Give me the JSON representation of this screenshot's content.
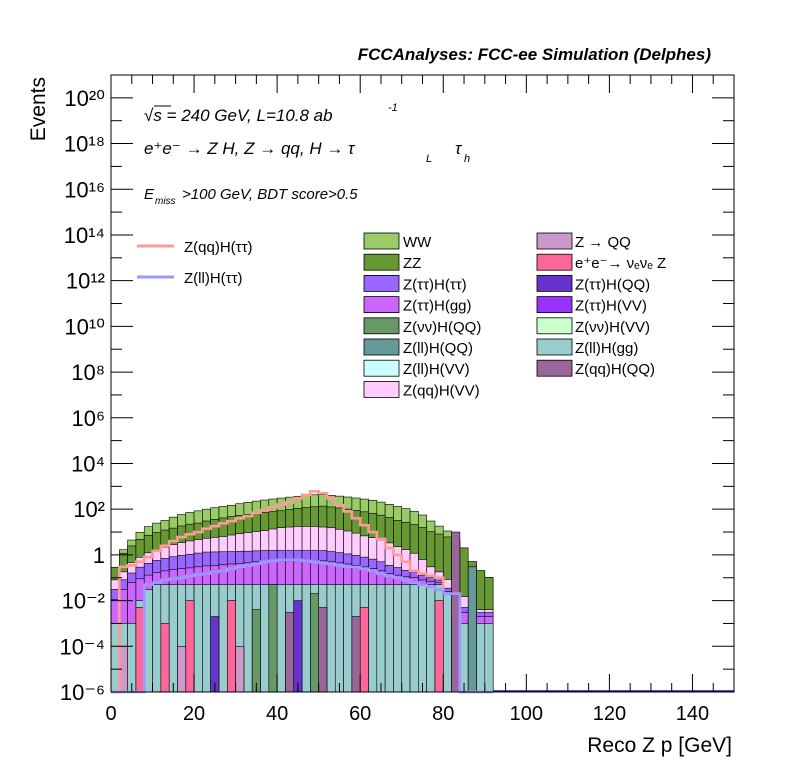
{
  "header": {
    "title": "FCCAnalyses: FCC-ee Simulation (Delphes)"
  },
  "annotations": {
    "sqrt_s": "√s = 240 GeV, L=10.8 ab",
    "lumi_exp": "-1",
    "process": "e⁺e⁻ → Z H, Z → qq, H → τ",
    "tau_L": "L",
    "tau_h": "h",
    "selection_sub": "miss",
    "selection": ">100 GeV, BDT score>0.5"
  },
  "chart_data": {
    "type": "histogram",
    "title": "FCCAnalyses: FCC-ee Simulation (Delphes)",
    "xlabel": "Reco Z p [GeV]",
    "ylabel": "Events",
    "xlim": [
      0,
      150
    ],
    "ylim": [
      1e-06,
      1e+21
    ],
    "y_scale": "log",
    "x_ticks": [
      0,
      20,
      40,
      60,
      80,
      100,
      120,
      140
    ],
    "y_ticks": [
      {
        "value": 1e-06,
        "label": "10⁻⁶"
      },
      {
        "value": 0.0001,
        "label": "10⁻⁴"
      },
      {
        "value": 0.01,
        "label": "10⁻²"
      },
      {
        "value": 1,
        "label": "1"
      },
      {
        "value": 100.0,
        "label": "10²"
      },
      {
        "value": 10000.0,
        "label": "10⁴"
      },
      {
        "value": 1000000.0,
        "label": "10⁶"
      },
      {
        "value": 100000000.0,
        "label": "10⁸"
      },
      {
        "value": 10000000000.0,
        "label": "10¹⁰"
      },
      {
        "value": 1000000000000.0,
        "label": "10¹²"
      },
      {
        "value": 100000000000000.0,
        "label": "10¹⁴"
      },
      {
        "value": 1e+16,
        "label": "10¹⁶"
      },
      {
        "value": 1e+18,
        "label": "10¹⁸"
      },
      {
        "value": 1e+20,
        "label": "10²⁰"
      }
    ],
    "bin_edges": [
      0,
      2,
      4,
      6,
      8,
      10,
      12,
      14,
      16,
      18,
      20,
      22,
      24,
      26,
      28,
      30,
      32,
      34,
      36,
      38,
      40,
      42,
      44,
      46,
      48,
      50,
      52,
      54,
      56,
      58,
      60,
      62,
      64,
      66,
      68,
      70,
      72,
      74,
      76,
      78,
      80,
      82,
      84,
      86,
      88,
      90,
      92
    ],
    "stack": [
      {
        "name": "Z(ll)H(gg)",
        "color": "#99cccc",
        "values": [
          0.001,
          0.001,
          0.001,
          0.01,
          0.03,
          0.05,
          0.05,
          0.05,
          0.05,
          0.05,
          0.05,
          0.05,
          0.05,
          0.05,
          0.05,
          0.05,
          0.05,
          0.05,
          0.05,
          0.05,
          0.05,
          0.05,
          0.05,
          0.05,
          0.05,
          0.05,
          0.05,
          0.05,
          0.05,
          0.05,
          0.05,
          0.05,
          0.05,
          0.05,
          0.05,
          0.05,
          0.05,
          0.05,
          0.05,
          0.05,
          0.02,
          0.002,
          0.001,
          0.001,
          0.001,
          0.001
        ]
      },
      {
        "name": "Z(ττ)H(gg)",
        "color": "#cc66ff",
        "values": [
          0.01,
          0.03,
          0.06,
          0.08,
          0.1,
          0.12,
          0.15,
          0.18,
          0.2,
          0.22,
          0.25,
          0.28,
          0.3,
          0.32,
          0.35,
          0.38,
          0.4,
          0.45,
          0.5,
          0.5,
          0.5,
          0.5,
          0.5,
          0.5,
          0.5,
          0.5,
          0.45,
          0.4,
          0.35,
          0.3,
          0.25,
          0.2,
          0.15,
          0.1,
          0.08,
          0.06,
          0.05,
          0.03,
          0.02,
          0.01,
          0.005,
          0.002,
          0.002,
          0.002,
          0.001,
          0.001
        ]
      },
      {
        "name": "Z(ττ)H(ττ)",
        "color": "#9966ff",
        "values": [
          0.02,
          0.05,
          0.1,
          0.2,
          0.3,
          0.4,
          0.5,
          0.6,
          0.7,
          0.8,
          0.9,
          1.0,
          1.0,
          1.0,
          1.0,
          1.0,
          1.0,
          1.0,
          1.0,
          1.0,
          1.0,
          1.0,
          1.0,
          1.0,
          1.0,
          1.0,
          0.9,
          0.8,
          0.7,
          0.6,
          0.5,
          0.4,
          0.3,
          0.2,
          0.15,
          0.1,
          0.08,
          0.05,
          0.03,
          0.02,
          0.01,
          0.005,
          0.002,
          0.001,
          0.001,
          0.001
        ]
      },
      {
        "name": "Z(qq)H(VV)",
        "color": "#ffccff",
        "values": [
          0.05,
          0.1,
          0.3,
          0.5,
          0.8,
          1.0,
          1.5,
          2.0,
          2.5,
          3.0,
          3.5,
          4.0,
          4.5,
          5.0,
          6.0,
          7.0,
          8.0,
          9.0,
          10.0,
          12.0,
          14.0,
          15.0,
          16.0,
          16.0,
          16.0,
          15.0,
          14.0,
          12.0,
          10.0,
          8.0,
          6.0,
          5.0,
          4.0,
          3.0,
          2.0,
          1.5,
          1.0,
          0.5,
          0.2,
          0.1,
          0.05,
          0.02,
          0.01,
          0.001,
          0.001,
          0.001
        ]
      },
      {
        "name": "ZZ",
        "color": "#669933",
        "values": [
          0.2,
          1.0,
          2.0,
          4.0,
          6.0,
          8.0,
          10.0,
          12.0,
          15.0,
          18.0,
          20.0,
          25.0,
          30.0,
          35.0,
          40.0,
          45.0,
          50.0,
          55.0,
          60.0,
          65.0,
          70.0,
          80.0,
          90.0,
          100.0,
          110.0,
          120.0,
          110.0,
          100.0,
          90.0,
          80.0,
          70.0,
          60.0,
          50.0,
          40.0,
          30.0,
          25.0,
          20.0,
          15.0,
          10.0,
          8.0,
          6.0,
          4.0,
          2.0,
          0.5,
          0.2,
          0.1
        ]
      },
      {
        "name": "WW",
        "color": "#99cc66",
        "values": [
          0.0,
          0.5,
          2.0,
          5.0,
          10.0,
          15.0,
          20.0,
          30.0,
          40.0,
          50.0,
          60.0,
          70.0,
          80.0,
          90.0,
          100.0,
          120.0,
          140.0,
          160.0,
          180.0,
          200.0,
          220.0,
          240.0,
          260.0,
          280.0,
          300.0,
          300.0,
          280.0,
          260.0,
          240.0,
          220.0,
          200.0,
          180.0,
          150.0,
          120.0,
          100.0,
          80.0,
          60.0,
          40.0,
          20.0,
          10.0,
          5.0,
          1.0,
          0.0,
          0.0,
          0.0,
          0.0
        ]
      }
    ],
    "spikes": [
      {
        "name": "e⁺e⁻→ νₑνₑ Z",
        "color": "#ff6699",
        "bins": [
          [
            6,
            8,
            0.005
          ],
          [
            12,
            14,
            0.001
          ],
          [
            18,
            20,
            0.01
          ],
          [
            28,
            30,
            0.01
          ],
          [
            60,
            62,
            0.005
          ],
          [
            78,
            80,
            0.01
          ]
        ]
      },
      {
        "name": "Z(qq)H(QQ)",
        "color": "#996699",
        "bins": [
          [
            42,
            44,
            0.003
          ],
          [
            50,
            52,
            0.005
          ],
          [
            58,
            60,
            0.002
          ],
          [
            82,
            84,
            10.0
          ]
        ]
      },
      {
        "name": "Z(νν)H(QQ)",
        "color": "#669966",
        "bins": [
          [
            34,
            36,
            0.004
          ],
          [
            38,
            40,
            0.05
          ],
          [
            48,
            50,
            0.02
          ]
        ]
      },
      {
        "name": "Z(ττ)H(QQ)",
        "color": "#6633cc",
        "bins": [
          [
            24,
            26,
            0.002
          ],
          [
            44,
            46,
            0.01
          ]
        ]
      },
      {
        "name": "Z(ll)H(QQ)",
        "color": "#669999",
        "bins": [
          [
            86,
            88,
            0.3
          ]
        ]
      },
      {
        "name": "Z → QQ",
        "color": "#cc99cc",
        "bins": [
          [
            2,
            4,
            0.0001
          ],
          [
            16,
            18,
            0.0001
          ],
          [
            30,
            32,
            0.0001
          ]
        ]
      }
    ],
    "overlay": [
      {
        "name": "Z(qq)H(ττ)",
        "color": "#ff9999",
        "values": [
          1e-06,
          0.3,
          0.35,
          0.5,
          0.8,
          1.5,
          2.5,
          4.0,
          6.0,
          8.0,
          10.0,
          14.0,
          18.0,
          24.0,
          30.0,
          40.0,
          50.0,
          70.0,
          90.0,
          120.0,
          160.0,
          200.0,
          300.0,
          420.0,
          600.0,
          500.0,
          300.0,
          150.0,
          80.0,
          40.0,
          20.0,
          10.0,
          5.0,
          2.0,
          1.0,
          0.5,
          0.2,
          0.15,
          0.12,
          0.1,
          0.02,
          0.02,
          1e-06,
          1e-06,
          1e-06,
          1e-06
        ]
      },
      {
        "name": "Z(ll)H(ττ)",
        "color": "#9999ff",
        "values": [
          1e-06,
          1e-06,
          1e-06,
          1e-06,
          0.05,
          0.06,
          0.08,
          0.09,
          0.1,
          0.12,
          0.14,
          0.15,
          0.18,
          0.2,
          0.25,
          0.3,
          0.35,
          0.4,
          0.5,
          0.55,
          0.6,
          0.6,
          0.6,
          0.55,
          0.5,
          0.45,
          0.4,
          0.35,
          0.3,
          0.3,
          0.25,
          0.2,
          0.15,
          0.12,
          0.1,
          0.08,
          0.06,
          0.05,
          0.04,
          0.03,
          0.02,
          0.02,
          1e-06,
          1e-06,
          1e-06,
          1e-06
        ]
      }
    ],
    "legend_lines": [
      {
        "name": "Z(qq)H(ττ)",
        "color": "#ff9999"
      },
      {
        "name": "Z(ll)H(ττ)",
        "color": "#9999ff"
      }
    ],
    "legend_col1": [
      {
        "name": "WW",
        "color": "#99cc66"
      },
      {
        "name": "ZZ",
        "color": "#669933"
      },
      {
        "name": "Z(ττ)H(ττ)",
        "color": "#9966ff"
      },
      {
        "name": "Z(ττ)H(gg)",
        "color": "#cc66ff"
      },
      {
        "name": "Z(νν)H(QQ)",
        "color": "#669966"
      },
      {
        "name": "Z(ll)H(QQ)",
        "color": "#669999"
      },
      {
        "name": "Z(ll)H(VV)",
        "color": "#ccffff"
      },
      {
        "name": "Z(qq)H(VV)",
        "color": "#ffccff"
      }
    ],
    "legend_col2": [
      {
        "name": "Z → QQ",
        "color": "#cc99cc"
      },
      {
        "name": "e⁺e⁻→ νₑνₑ Z",
        "color": "#ff6699"
      },
      {
        "name": "Z(ττ)H(QQ)",
        "color": "#6633cc"
      },
      {
        "name": "Z(ττ)H(VV)",
        "color": "#9933ff"
      },
      {
        "name": "Z(νν)H(VV)",
        "color": "#ccffcc"
      },
      {
        "name": "Z(ll)H(gg)",
        "color": "#99cccc"
      },
      {
        "name": "Z(qq)H(QQ)",
        "color": "#996699"
      }
    ]
  }
}
